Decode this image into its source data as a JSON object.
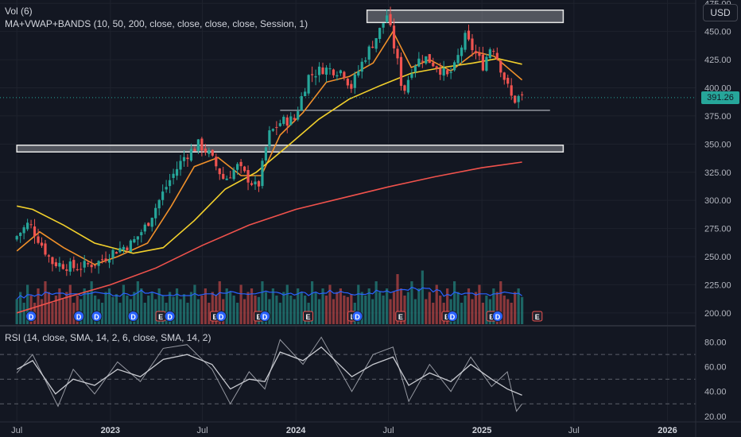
{
  "legend": {
    "volume": "Vol (6)",
    "ma": "MA+VWAP+BANDS (10, 50, 200, close, close, close, close, Session, 1)",
    "rsi": "RSI (14, close, SMA, 14, 2, 6, close, SMA, 14, 2)"
  },
  "currency_label": "USD",
  "last_price_label": "391.26",
  "colors": {
    "background": "#131722",
    "up": "#26a69a",
    "down": "#ef5350",
    "ma10": "#f0902a",
    "ma50": "#f2d02c",
    "ma200": "#f0524c",
    "vol_avg": "#2962ff",
    "rsi": "#9598a1",
    "rsi_ma": "#c9cbd1",
    "price_tag": "#26a69a"
  },
  "chart_data": [
    {
      "type": "candlestick",
      "title": "",
      "y_axis_ticks": [
        "475.00",
        "450.00",
        "425.00",
        "400.00",
        "375.00",
        "350.00",
        "325.00",
        "300.00",
        "275.00",
        "250.00",
        "225.00",
        "200.00"
      ],
      "x_axis_ticks": [
        "Jul",
        "2023",
        "Jul",
        "2024",
        "Jul",
        "2025",
        "Jul",
        "2026"
      ],
      "ylim": [
        190,
        478
      ],
      "last_price": 391.26,
      "close_path": [
        {
          "date": "2022-07-01",
          "close": 265
        },
        {
          "date": "2022-08-01",
          "close": 280
        },
        {
          "date": "2022-09-15",
          "close": 245
        },
        {
          "date": "2022-11-01",
          "close": 240
        },
        {
          "date": "2022-12-15",
          "close": 245
        },
        {
          "date": "2023-01-15",
          "close": 255
        },
        {
          "date": "2023-02-20",
          "close": 262
        },
        {
          "date": "2023-03-20",
          "close": 278
        },
        {
          "date": "2023-05-01",
          "close": 315
        },
        {
          "date": "2023-06-01",
          "close": 338
        },
        {
          "date": "2023-07-01",
          "close": 350
        },
        {
          "date": "2023-07-20",
          "close": 342
        },
        {
          "date": "2023-08-20",
          "close": 318
        },
        {
          "date": "2023-09-15",
          "close": 330
        },
        {
          "date": "2023-10-25",
          "close": 310
        },
        {
          "date": "2023-11-15",
          "close": 358
        },
        {
          "date": "2023-12-10",
          "close": 370
        },
        {
          "date": "2024-01-05",
          "close": 372
        },
        {
          "date": "2024-02-01",
          "close": 410
        },
        {
          "date": "2024-03-01",
          "close": 417
        },
        {
          "date": "2024-04-10",
          "close": 415
        },
        {
          "date": "2024-04-25",
          "close": 400
        },
        {
          "date": "2024-05-20",
          "close": 425
        },
        {
          "date": "2024-06-20",
          "close": 450
        },
        {
          "date": "2024-07-05",
          "close": 465
        },
        {
          "date": "2024-07-25",
          "close": 425
        },
        {
          "date": "2024-08-06",
          "close": 395
        },
        {
          "date": "2024-08-25",
          "close": 420
        },
        {
          "date": "2024-09-15",
          "close": 428
        },
        {
          "date": "2024-10-10",
          "close": 420
        },
        {
          "date": "2024-11-01",
          "close": 410
        },
        {
          "date": "2024-11-15",
          "close": 418
        },
        {
          "date": "2024-12-05",
          "close": 445
        },
        {
          "date": "2024-12-20",
          "close": 435
        },
        {
          "date": "2025-01-10",
          "close": 420
        },
        {
          "date": "2025-01-28",
          "close": 440
        },
        {
          "date": "2025-02-20",
          "close": 410
        },
        {
          "date": "2025-03-10",
          "close": 388
        },
        {
          "date": "2025-03-21",
          "close": 391.26
        }
      ],
      "moving_averages": [
        {
          "name": "MA 10",
          "points": [
            {
              "date": "2022-07-01",
              "value": 255
            },
            {
              "date": "2022-08-15",
              "value": 272
            },
            {
              "date": "2022-10-01",
              "value": 258
            },
            {
              "date": "2022-12-01",
              "value": 243
            },
            {
              "date": "2023-01-15",
              "value": 250
            },
            {
              "date": "2023-03-15",
              "value": 262
            },
            {
              "date": "2023-05-01",
              "value": 295
            },
            {
              "date": "2023-06-15",
              "value": 330
            },
            {
              "date": "2023-08-01",
              "value": 338
            },
            {
              "date": "2023-09-15",
              "value": 322
            },
            {
              "date": "2023-10-25",
              "value": 322
            },
            {
              "date": "2023-12-01",
              "value": 358
            },
            {
              "date": "2024-01-15",
              "value": 378
            },
            {
              "date": "2024-03-01",
              "value": 405
            },
            {
              "date": "2024-04-15",
              "value": 410
            },
            {
              "date": "2024-06-01",
              "value": 422
            },
            {
              "date": "2024-07-10",
              "value": 450
            },
            {
              "date": "2024-08-15",
              "value": 418
            },
            {
              "date": "2024-09-20",
              "value": 425
            },
            {
              "date": "2024-11-01",
              "value": 415
            },
            {
              "date": "2024-12-20",
              "value": 432
            },
            {
              "date": "2025-01-25",
              "value": 428
            },
            {
              "date": "2025-03-21",
              "value": 407
            }
          ]
        },
        {
          "name": "MA 50",
          "points": [
            {
              "date": "2022-07-01",
              "value": 295
            },
            {
              "date": "2022-08-01",
              "value": 292
            },
            {
              "date": "2022-10-01",
              "value": 278
            },
            {
              "date": "2022-12-01",
              "value": 262
            },
            {
              "date": "2023-02-15",
              "value": 253
            },
            {
              "date": "2023-04-15",
              "value": 258
            },
            {
              "date": "2023-06-15",
              "value": 282
            },
            {
              "date": "2023-08-15",
              "value": 310
            },
            {
              "date": "2023-10-15",
              "value": 325
            },
            {
              "date": "2023-12-15",
              "value": 348
            },
            {
              "date": "2024-02-15",
              "value": 372
            },
            {
              "date": "2024-04-15",
              "value": 390
            },
            {
              "date": "2024-06-15",
              "value": 402
            },
            {
              "date": "2024-08-15",
              "value": 413
            },
            {
              "date": "2024-10-15",
              "value": 418
            },
            {
              "date": "2024-12-15",
              "value": 422
            },
            {
              "date": "2025-02-01",
              "value": 426
            },
            {
              "date": "2025-03-21",
              "value": 421
            }
          ]
        },
        {
          "name": "MA 200",
          "points": [
            {
              "date": "2022-07-01",
              "value": 200
            },
            {
              "date": "2022-10-01",
              "value": 213
            },
            {
              "date": "2023-01-01",
              "value": 225
            },
            {
              "date": "2023-04-01",
              "value": 240
            },
            {
              "date": "2023-07-01",
              "value": 260
            },
            {
              "date": "2023-10-01",
              "value": 278
            },
            {
              "date": "2024-01-01",
              "value": 292
            },
            {
              "date": "2024-04-01",
              "value": 302
            },
            {
              "date": "2024-07-01",
              "value": 312
            },
            {
              "date": "2024-10-01",
              "value": 321
            },
            {
              "date": "2025-01-01",
              "value": 329
            },
            {
              "date": "2025-03-21",
              "value": 334
            }
          ]
        }
      ],
      "zones": [
        {
          "from": "2024-05-20",
          "to": "2025-06-10",
          "low": 458,
          "high": 469
        },
        {
          "from": "2022-07-01",
          "to": "2025-06-10",
          "low": 343,
          "high": 349
        }
      ],
      "support_line": {
        "from": "2023-12-01",
        "to": "2025-05-15",
        "value": 380
      },
      "earnings_markers": [
        {
          "date": "2022-07-29",
          "label": "D"
        },
        {
          "date": "2022-10-31",
          "label": "D"
        },
        {
          "date": "2022-12-05",
          "label": "D"
        },
        {
          "date": "2023-02-15",
          "label": "D"
        },
        {
          "date": "2023-04-10",
          "label": "E"
        },
        {
          "date": "2023-04-28",
          "label": "D"
        },
        {
          "date": "2023-07-26",
          "label": "E"
        },
        {
          "date": "2023-08-07",
          "label": "D"
        },
        {
          "date": "2023-10-20",
          "label": "E"
        },
        {
          "date": "2023-11-01",
          "label": "D"
        },
        {
          "date": "2024-01-25",
          "label": "E"
        },
        {
          "date": "2024-04-22",
          "label": "E"
        },
        {
          "date": "2024-05-01",
          "label": "D"
        },
        {
          "date": "2024-07-25",
          "label": "E"
        },
        {
          "date": "2024-10-24",
          "label": "E"
        },
        {
          "date": "2024-11-04",
          "label": "D"
        },
        {
          "date": "2025-01-20",
          "label": "E"
        },
        {
          "date": "2025-02-01",
          "label": "D"
        },
        {
          "date": "2025-04-20",
          "label": "E"
        }
      ]
    },
    {
      "type": "bar",
      "title": "Vol (6)",
      "description_note": "volume bars in bottom of price pane, relative scale",
      "relative_levels": [
        0.35,
        0.45,
        0.3,
        0.55,
        0.4,
        0.3,
        0.5,
        0.35,
        0.6,
        0.45,
        0.3,
        0.4,
        0.5,
        0.35,
        0.45,
        0.55,
        0.3,
        0.4,
        0.35,
        0.5,
        0.45,
        0.6,
        0.4,
        0.35,
        0.3,
        0.45,
        0.5,
        0.38,
        0.42,
        0.3,
        0.55,
        0.4,
        0.35,
        0.45,
        0.6,
        0.5,
        0.3,
        0.4,
        0.45,
        0.35,
        0.5,
        0.4,
        0.3,
        0.45,
        0.38,
        0.5,
        0.35,
        0.42,
        0.3,
        0.45,
        0.55,
        0.35,
        0.4,
        0.5,
        0.3,
        0.45,
        0.4,
        0.6,
        0.35,
        0.5,
        0.45,
        0.4,
        0.3,
        0.55,
        0.35,
        0.45,
        0.5,
        0.4,
        0.38,
        0.6,
        0.45,
        0.35,
        0.5,
        0.4,
        0.3,
        0.45,
        0.55,
        0.4,
        0.35,
        0.5,
        0.45,
        0.4,
        0.3,
        0.6,
        0.45,
        0.35,
        0.5,
        0.4,
        0.55,
        0.35,
        0.45,
        0.5,
        0.4,
        0.38,
        0.42,
        0.3,
        0.55,
        0.45,
        0.4,
        0.5,
        0.35,
        0.6,
        0.45,
        0.4,
        0.5,
        0.35,
        0.45,
        0.7,
        0.5,
        0.4,
        0.45,
        0.6,
        0.35,
        0.5,
        0.75
      ]
    },
    {
      "type": "line",
      "title": "RSI (14, close, SMA, 14, 2, 6, close, SMA, 14, 2)",
      "y_axis_ticks": [
        "80.00",
        "60.00",
        "40.00",
        "20.00"
      ],
      "ylim": [
        16,
        92
      ],
      "reference_levels": [
        70,
        50,
        30
      ],
      "series": [
        {
          "name": "",
          "points": [
            {
              "date": "2022-07-01",
              "value": 58
            },
            {
              "date": "2022-08-01",
              "value": 65
            },
            {
              "date": "2022-09-15",
              "value": 38
            },
            {
              "date": "2022-10-20",
              "value": 50
            },
            {
              "date": "2022-12-01",
              "value": 45
            },
            {
              "date": "2023-01-15",
              "value": 58
            },
            {
              "date": "2023-03-01",
              "value": 52
            },
            {
              "date": "2023-04-15",
              "value": 66
            },
            {
              "date": "2023-06-01",
              "value": 70
            },
            {
              "date": "2023-07-20",
              "value": 62
            },
            {
              "date": "2023-08-25",
              "value": 42
            },
            {
              "date": "2023-10-01",
              "value": 50
            },
            {
              "date": "2023-11-01",
              "value": 48
            },
            {
              "date": "2023-12-01",
              "value": 72
            },
            {
              "date": "2024-01-15",
              "value": 65
            },
            {
              "date": "2024-02-20",
              "value": 76
            },
            {
              "date": "2024-04-20",
              "value": 52
            },
            {
              "date": "2024-06-01",
              "value": 62
            },
            {
              "date": "2024-07-10",
              "value": 68
            },
            {
              "date": "2024-08-10",
              "value": 45
            },
            {
              "date": "2024-09-20",
              "value": 55
            },
            {
              "date": "2024-11-01",
              "value": 48
            },
            {
              "date": "2024-12-10",
              "value": 62
            },
            {
              "date": "2025-01-20",
              "value": 50
            },
            {
              "date": "2025-02-20",
              "value": 42
            },
            {
              "date": "2025-03-21",
              "value": 37
            }
          ]
        },
        {
          "name": "",
          "points": [
            {
              "date": "2022-07-01",
              "value": 55
            },
            {
              "date": "2022-08-01",
              "value": 70
            },
            {
              "date": "2022-09-20",
              "value": 28
            },
            {
              "date": "2022-10-20",
              "value": 58
            },
            {
              "date": "2022-12-01",
              "value": 38
            },
            {
              "date": "2023-01-15",
              "value": 64
            },
            {
              "date": "2023-03-01",
              "value": 48
            },
            {
              "date": "2023-04-15",
              "value": 75
            },
            {
              "date": "2023-06-01",
              "value": 78
            },
            {
              "date": "2023-07-20",
              "value": 58
            },
            {
              "date": "2023-08-25",
              "value": 30
            },
            {
              "date": "2023-10-01",
              "value": 56
            },
            {
              "date": "2023-11-01",
              "value": 42
            },
            {
              "date": "2023-12-01",
              "value": 82
            },
            {
              "date": "2024-01-15",
              "value": 62
            },
            {
              "date": "2024-02-20",
              "value": 84
            },
            {
              "date": "2024-04-20",
              "value": 40
            },
            {
              "date": "2024-06-01",
              "value": 70
            },
            {
              "date": "2024-07-10",
              "value": 76
            },
            {
              "date": "2024-08-10",
              "value": 32
            },
            {
              "date": "2024-09-20",
              "value": 62
            },
            {
              "date": "2024-11-01",
              "value": 40
            },
            {
              "date": "2024-12-10",
              "value": 68
            },
            {
              "date": "2025-01-20",
              "value": 44
            },
            {
              "date": "2025-02-20",
              "value": 56
            },
            {
              "date": "2025-03-10",
              "value": 24
            },
            {
              "date": "2025-03-21",
              "value": 30
            }
          ]
        }
      ]
    }
  ]
}
